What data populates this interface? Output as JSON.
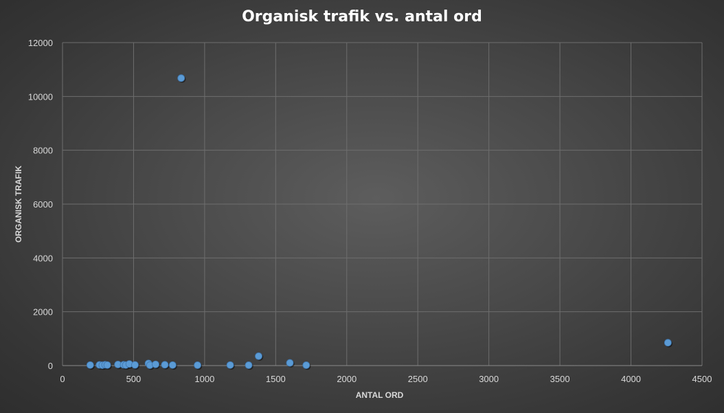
{
  "chart_data": {
    "type": "scatter",
    "title": "Organisk trafik vs. antal ord",
    "xlabel": "ANTAL ORD",
    "ylabel": "ORGANISK TRAFIK",
    "xlim": [
      0,
      4500
    ],
    "ylim": [
      0,
      12000
    ],
    "x_ticks": [
      "0",
      "500",
      "1000",
      "1500",
      "2000",
      "2500",
      "3000",
      "3500",
      "4000",
      "4500"
    ],
    "y_ticks": [
      "0",
      "2000",
      "4000",
      "6000",
      "8000",
      "10000",
      "12000"
    ],
    "grid": true,
    "marker_color": "#5b9bd5",
    "points": [
      {
        "x": 195,
        "y": 20
      },
      {
        "x": 260,
        "y": 25
      },
      {
        "x": 280,
        "y": 15
      },
      {
        "x": 300,
        "y": 30
      },
      {
        "x": 315,
        "y": 20
      },
      {
        "x": 390,
        "y": 40
      },
      {
        "x": 430,
        "y": 30
      },
      {
        "x": 445,
        "y": 20
      },
      {
        "x": 470,
        "y": 60
      },
      {
        "x": 510,
        "y": 25
      },
      {
        "x": 605,
        "y": 80
      },
      {
        "x": 615,
        "y": 15
      },
      {
        "x": 655,
        "y": 45
      },
      {
        "x": 720,
        "y": 30
      },
      {
        "x": 775,
        "y": 20
      },
      {
        "x": 835,
        "y": 10680
      },
      {
        "x": 950,
        "y": 15
      },
      {
        "x": 1180,
        "y": 20
      },
      {
        "x": 1310,
        "y": 15
      },
      {
        "x": 1380,
        "y": 350
      },
      {
        "x": 1600,
        "y": 100
      },
      {
        "x": 1715,
        "y": 15
      },
      {
        "x": 4260,
        "y": 850
      }
    ]
  }
}
